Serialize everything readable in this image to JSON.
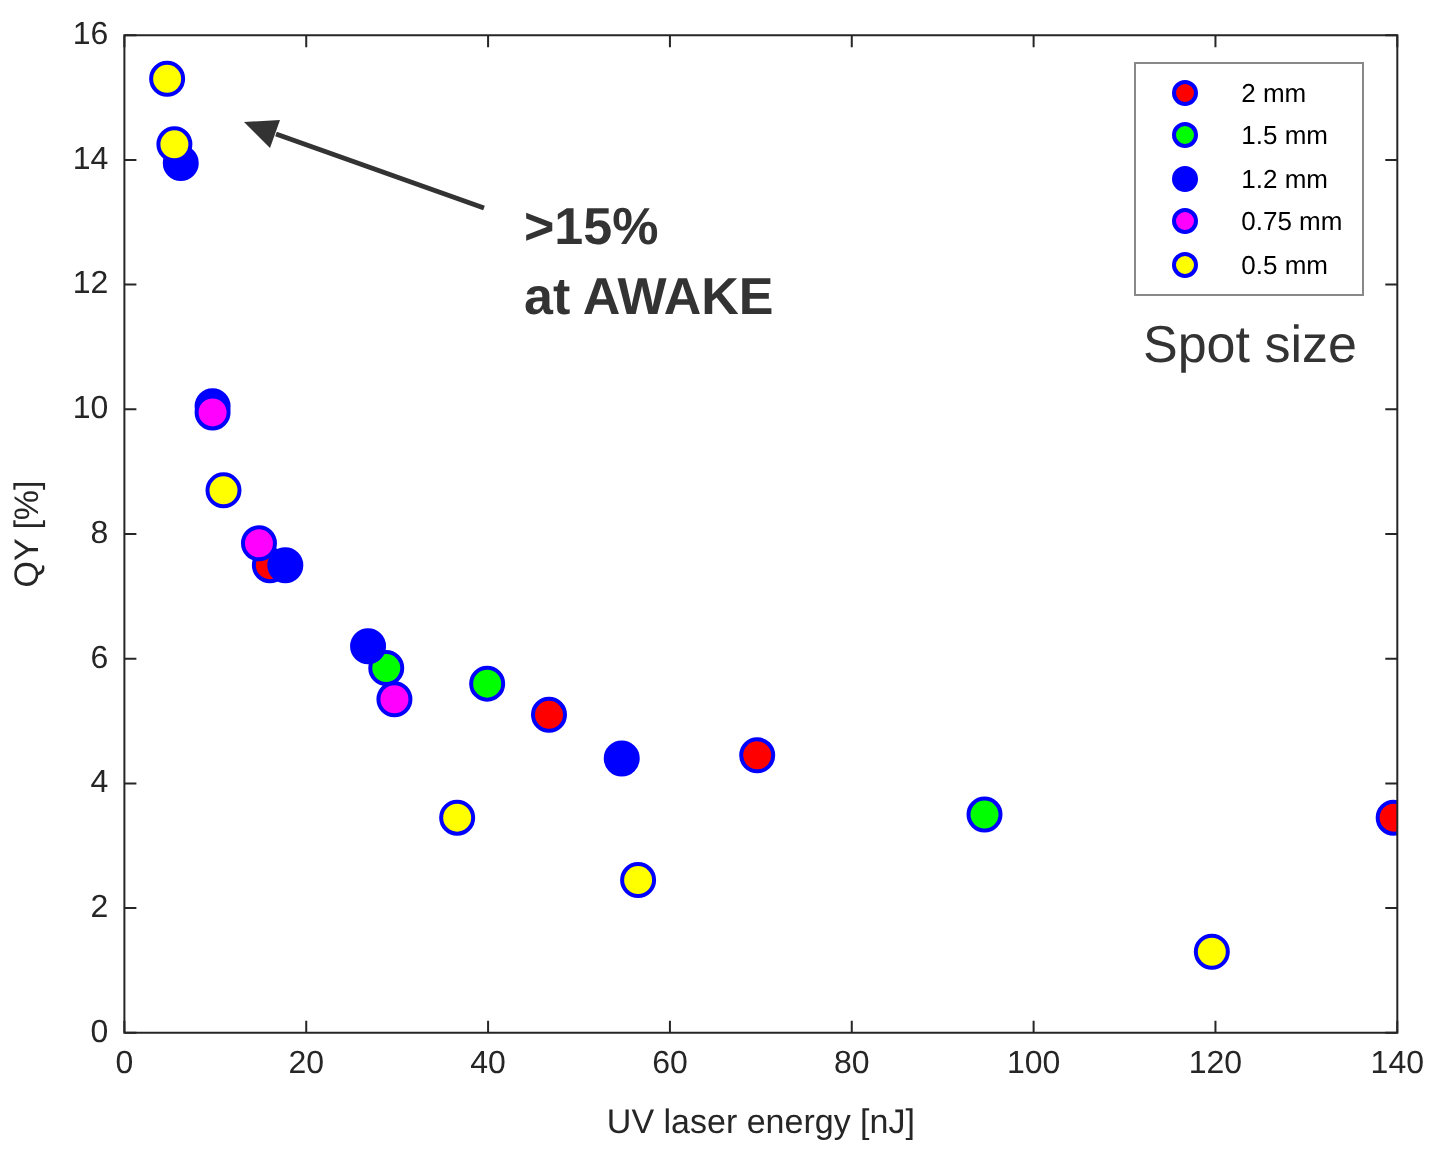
{
  "chart_data": {
    "type": "scatter",
    "xlabel": "UV laser energy [nJ]",
    "ylabel": "QY [%]",
    "xlim": [
      0,
      140
    ],
    "xticks": [
      0,
      20,
      40,
      60,
      80,
      100,
      120,
      140
    ],
    "ylim": [
      0,
      16
    ],
    "yticks": [
      0,
      2,
      4,
      6,
      8,
      10,
      12,
      14,
      16
    ],
    "grid": false,
    "legend": "top right",
    "legend_title": "Spot size",
    "marker": "circle",
    "annotations": [
      ">15%\nat AWAKE"
    ],
    "series": [
      {
        "name": "2 mm",
        "color": "#ff0000",
        "x": [
          16,
          46.7,
          69.6,
          139.6
        ],
        "values": [
          7.5,
          5.1,
          4.45,
          3.45
        ]
      },
      {
        "name": "1.5 mm",
        "color": "#00ff00",
        "x": [
          28.8,
          39.9,
          94.6
        ],
        "values": [
          5.85,
          5.6,
          3.5
        ]
      },
      {
        "name": "1.2 mm",
        "color": "#0000ff",
        "x": [
          6.2,
          9.7,
          17.7,
          26.8,
          54.7
        ],
        "values": [
          13.95,
          10.05,
          7.5,
          6.2,
          4.4
        ]
      },
      {
        "name": "0.75 mm",
        "color": "#ff00ff",
        "x": [
          9.7,
          14.8,
          29.7
        ],
        "values": [
          9.95,
          7.85,
          5.35
        ]
      },
      {
        "name": "0.5 mm",
        "color": "#ffff00",
        "x": [
          4.7,
          5.5,
          10.9,
          36.6,
          56.5,
          119.6
        ],
        "values": [
          15.3,
          14.25,
          8.7,
          3.45,
          2.45,
          1.3
        ]
      }
    ]
  }
}
